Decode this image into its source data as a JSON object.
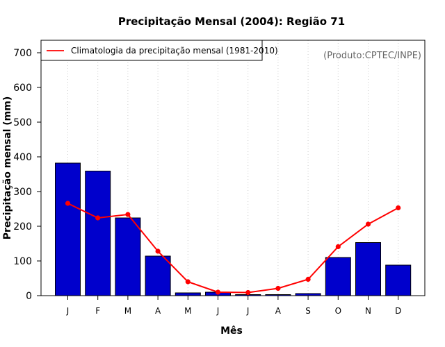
{
  "chart_data": {
    "type": "bar",
    "title": "Precipitação Mensal (2004): Região 71",
    "xlabel": "Mês",
    "ylabel": "Precipitação mensal (mm)",
    "ylim": [
      0,
      700
    ],
    "yticks": [
      0,
      100,
      200,
      300,
      400,
      500,
      600,
      700
    ],
    "categories": [
      "J",
      "F",
      "M",
      "A",
      "M",
      "J",
      "J",
      "A",
      "S",
      "O",
      "N",
      "D"
    ],
    "series": [
      {
        "name": "Precipitação mensal (2004)",
        "type": "bar",
        "color": "#0000cc",
        "values": [
          382,
          359,
          224,
          114,
          8,
          10,
          3,
          3,
          6,
          110,
          153,
          88
        ]
      },
      {
        "name": "Climatologia da precipitação mensal (1981-2010)",
        "type": "line",
        "color": "#ff0000",
        "values": [
          266,
          224,
          234,
          128,
          40,
          10,
          9,
          21,
          47,
          141,
          206,
          253
        ]
      }
    ],
    "legend": {
      "entries": [
        "Climatologia da precipitação mensal (1981-2010)"
      ],
      "position": "top-left"
    },
    "annotation": "(Produto:CPTEC/INPE)",
    "grid": "vertical-dotted"
  }
}
